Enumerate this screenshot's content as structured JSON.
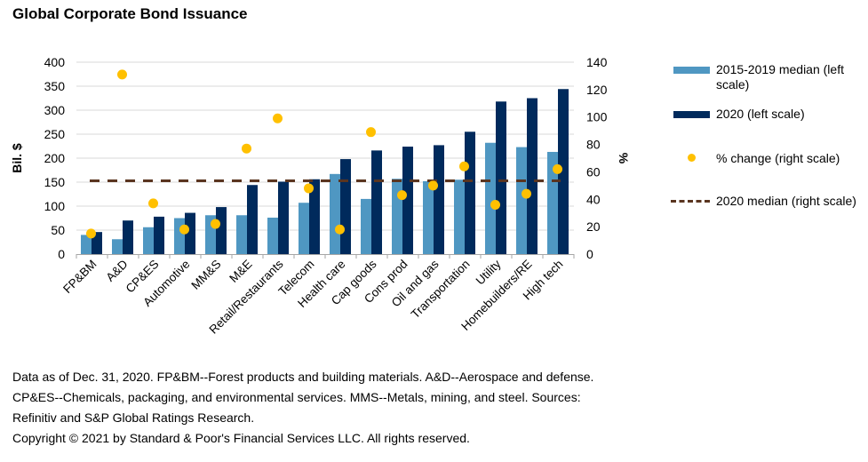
{
  "title": "Global Corporate Bond Issuance",
  "chart_data": {
    "type": "bar",
    "title": "Global Corporate Bond Issuance",
    "xlabel": "",
    "ylabel": "Bil. $",
    "y2label": "%",
    "ylim": [
      0,
      400
    ],
    "y2lim": [
      0,
      140
    ],
    "yticks": [
      0,
      50,
      100,
      150,
      200,
      250,
      300,
      350,
      400
    ],
    "y2ticks": [
      0,
      20,
      40,
      60,
      80,
      100,
      120,
      140
    ],
    "grid": true,
    "legend_position": "right",
    "categories": [
      "FP&BM",
      "A&D",
      "CP&ES",
      "Automotive",
      "MM&S",
      "M&E",
      "Retail/Restaurants",
      "Telecom",
      "Health care",
      "Cap goods",
      "Cons prod",
      "Oil and gas",
      "Transportation",
      "Utility",
      "Homebuilders/RE",
      "High tech"
    ],
    "series": [
      {
        "name": "2015-2019 median (left scale)",
        "type": "bar",
        "axis": "left",
        "color": "#4f97c2",
        "values": [
          40,
          31,
          56,
          75,
          81,
          81,
          76,
          107,
          167,
          115,
          157,
          152,
          155,
          232,
          223,
          213
        ]
      },
      {
        "name": "2020 (left scale)",
        "type": "bar",
        "axis": "left",
        "color": "#002a5c",
        "values": [
          46,
          70,
          78,
          86,
          98,
          144,
          151,
          156,
          198,
          216,
          224,
          227,
          255,
          318,
          325,
          344
        ]
      },
      {
        "name": "% change (right scale)",
        "type": "scatter",
        "axis": "right",
        "color": "#ffc000",
        "values": [
          15,
          131,
          37,
          18,
          22,
          77,
          99,
          48,
          18,
          89,
          43,
          50,
          64,
          36,
          44,
          62
        ]
      },
      {
        "name": "2020 median (right scale)",
        "type": "line",
        "axis": "right",
        "style": "dashed",
        "color": "#5a3520",
        "values": [
          53.5
        ]
      }
    ]
  },
  "legend": [
    {
      "label": "2015-2019 median (left scale)",
      "kind": "bar",
      "color": "#4f97c2"
    },
    {
      "label": "2020 (left scale)",
      "kind": "bar",
      "color": "#002a5c"
    },
    {
      "label": "% change (right scale)",
      "kind": "dot",
      "color": "#ffc000"
    },
    {
      "label": "2020 median (right scale)",
      "kind": "dash",
      "color": "#5a3520"
    }
  ],
  "footer": {
    "lines": [
      "Data as of Dec. 31, 2020. FP&BM--Forest products and building materials. A&D--Aerospace and defense.",
      "CP&ES--Chemicals, packaging, and environmental services. MMS--Metals, mining, and steel. Sources:",
      "Refinitiv and S&P Global Ratings Research.",
      "Copyright © 2021 by Standard & Poor's Financial Services LLC. All rights reserved."
    ]
  }
}
